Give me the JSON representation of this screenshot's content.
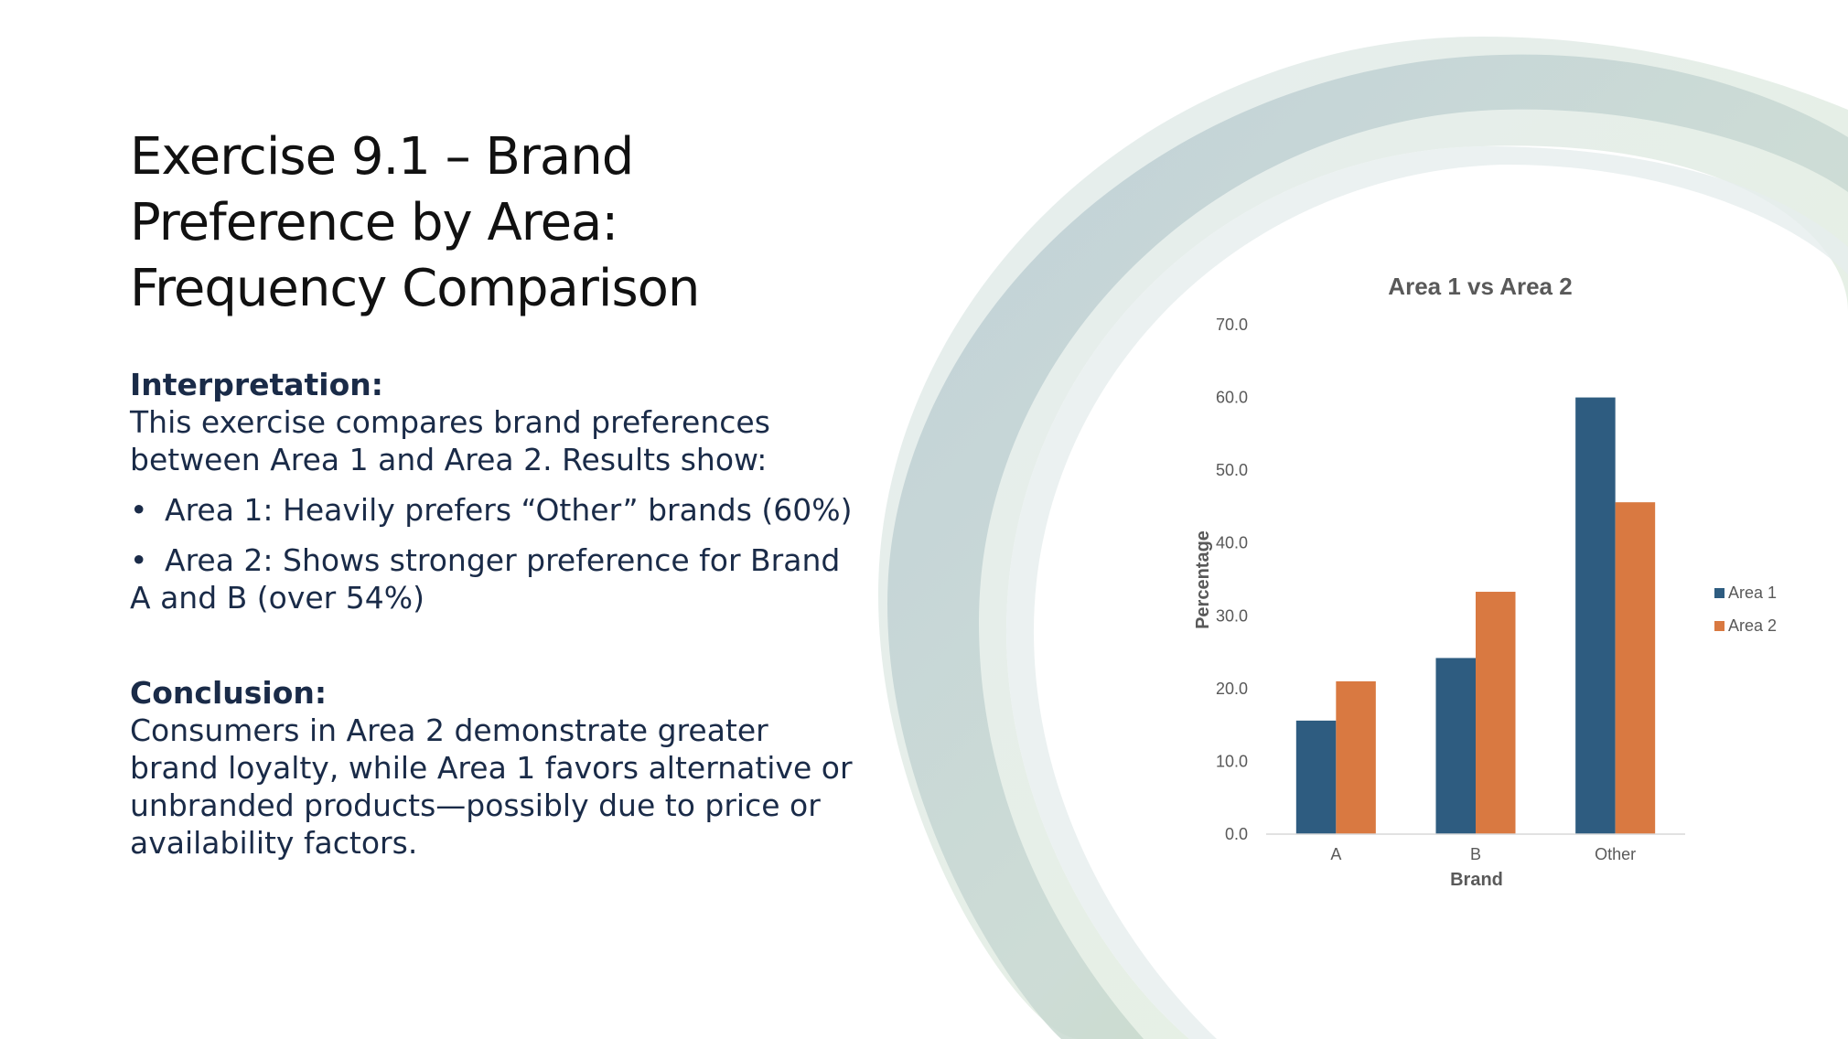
{
  "slide": {
    "title_lines": [
      "Exercise 9.1 – Brand",
      "Preference by Area:",
      "Frequency Comparison"
    ],
    "interpretation": {
      "heading": "Interpretation:",
      "lines": [
        "This exercise compares brand preferences",
        "between Area 1 and Area 2. Results show:"
      ],
      "bullets": [
        {
          "text": "Area 1: Heavily prefers “Other” brands (60%)",
          "cont": ""
        },
        {
          "text": "Area 2: Shows stronger preference for Brand",
          "cont": "A and B (over 54%)"
        }
      ]
    },
    "conclusion": {
      "heading": "Conclusion:",
      "lines": [
        "Consumers in Area 2 demonstrate greater",
        "brand loyalty, while Area 1 favors alternative or",
        "unbranded products—possibly due to price or",
        "availability factors."
      ]
    }
  },
  "colors": {
    "area1": "#2e5c80",
    "area2": "#d97941",
    "text": "#1a2b48"
  },
  "chart_data": {
    "type": "bar",
    "title": "Area 1 vs Area 2",
    "xlabel": "Brand",
    "ylabel": "Percentage",
    "categories": [
      "A",
      "B",
      "Other"
    ],
    "series": [
      {
        "name": "Area 1",
        "values": [
          15.6,
          24.2,
          60.0
        ]
      },
      {
        "name": "Area 2",
        "values": [
          21.0,
          33.3,
          45.6
        ]
      }
    ],
    "ylim": [
      0,
      70
    ],
    "yticks": [
      "0.0",
      "10.0",
      "20.0",
      "30.0",
      "40.0",
      "50.0",
      "60.0",
      "70.0"
    ],
    "grid": false,
    "legend": "right"
  }
}
